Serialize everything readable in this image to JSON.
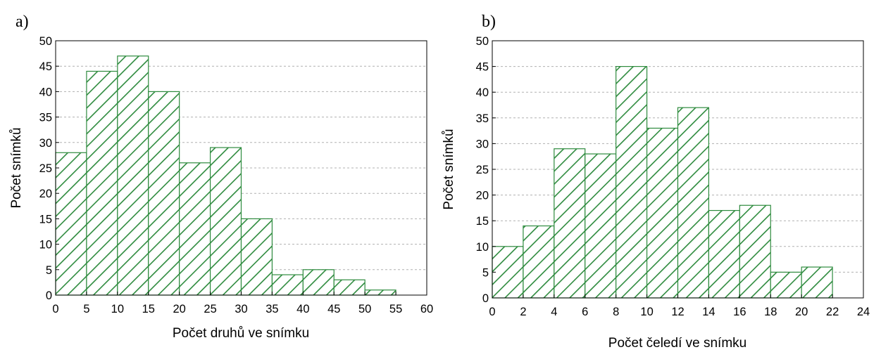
{
  "chart_data": [
    {
      "type": "bar",
      "panel_label": "a)",
      "xlabel": "Počet druhů ve snímku",
      "ylabel": "Počet snímků",
      "xlim": [
        0,
        60
      ],
      "ylim": [
        0,
        50
      ],
      "x_ticks": [
        "0",
        "5",
        "10",
        "15",
        "20",
        "25",
        "30",
        "35",
        "40",
        "45",
        "50",
        "55",
        "60"
      ],
      "y_ticks": [
        "0",
        "5",
        "10",
        "15",
        "20",
        "25",
        "30",
        "35",
        "40",
        "45",
        "50"
      ],
      "bin_edges": [
        0,
        5,
        10,
        15,
        20,
        25,
        30,
        35,
        40,
        45,
        50,
        55
      ],
      "values": [
        28,
        44,
        47,
        40,
        26,
        29,
        15,
        4,
        5,
        3,
        1
      ],
      "grid": "horizontal dashed",
      "bar_fill": "diagonal hatch",
      "bar_color": "#2e8b3e"
    },
    {
      "type": "bar",
      "panel_label": "b)",
      "xlabel": "Počet čeledí ve snímku",
      "ylabel": "Počet snímků",
      "xlim": [
        0,
        24
      ],
      "ylim": [
        0,
        50
      ],
      "x_ticks": [
        "0",
        "2",
        "4",
        "6",
        "8",
        "10",
        "12",
        "14",
        "16",
        "18",
        "20",
        "22",
        "24"
      ],
      "y_ticks": [
        "0",
        "5",
        "10",
        "15",
        "20",
        "25",
        "30",
        "35",
        "40",
        "45",
        "50"
      ],
      "bin_edges": [
        0,
        2,
        4,
        6,
        8,
        10,
        12,
        14,
        16,
        18,
        20,
        22
      ],
      "values": [
        10,
        14,
        29,
        28,
        45,
        33,
        37,
        17,
        18,
        5,
        6
      ],
      "grid": "horizontal dashed",
      "bar_fill": "diagonal hatch",
      "bar_color": "#2e8b3e"
    }
  ]
}
